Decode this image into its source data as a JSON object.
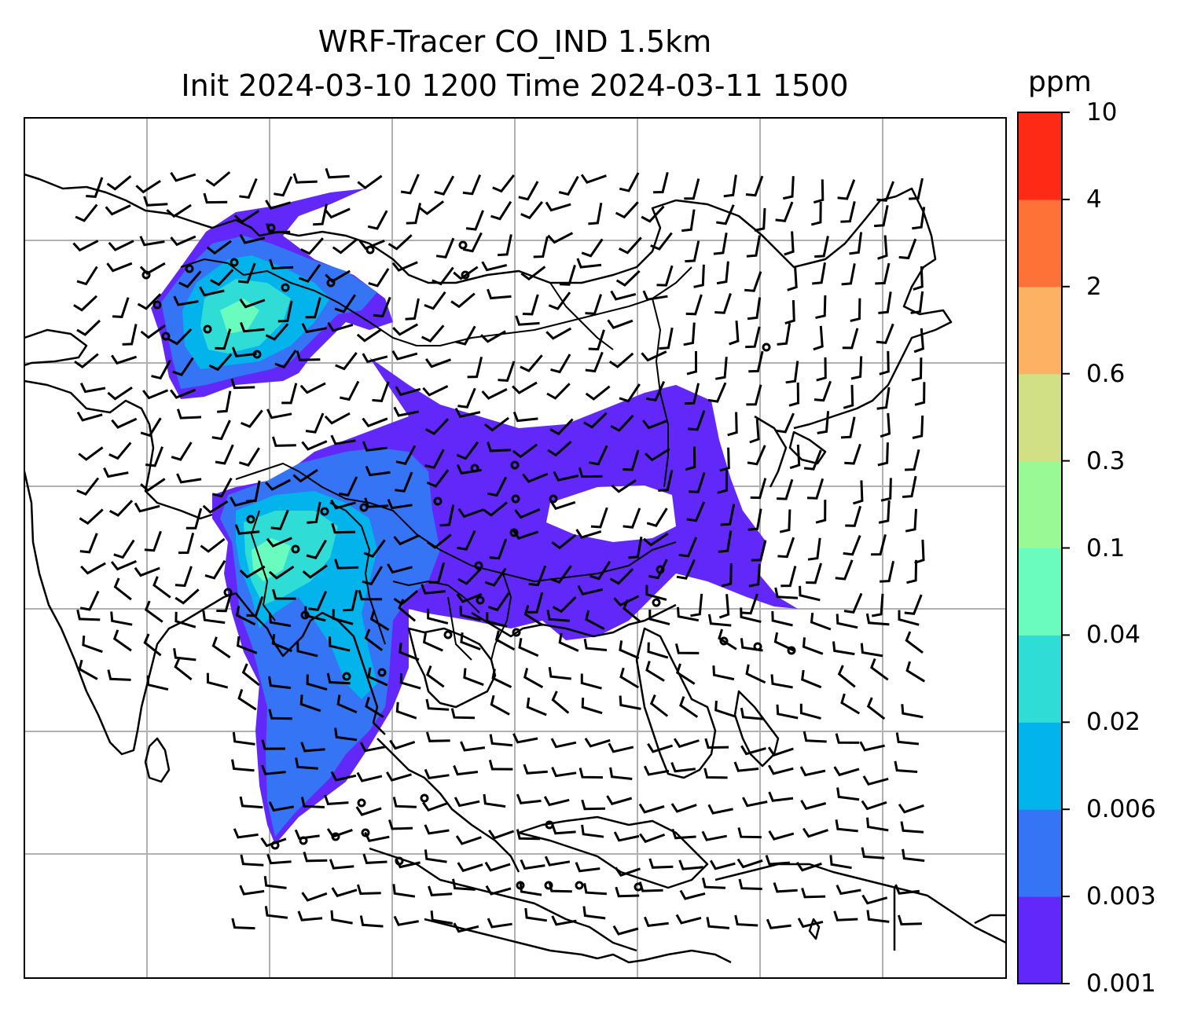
{
  "title": {
    "line1": "WRF-Tracer CO_IND 1.5km",
    "line2": "Init 2024-03-10 1200 Time 2024-03-11 1500"
  },
  "colorbar": {
    "unit": "ppm",
    "ticks": [
      "0.001",
      "0.003",
      "0.006",
      "0.02",
      "0.04",
      "0.1",
      "0.3",
      "0.6",
      "2",
      "4",
      "10"
    ],
    "colors": [
      "#6228fa",
      "#3474f5",
      "#03b3ec",
      "#2fdcd6",
      "#6afcbf",
      "#99f994",
      "#d1e085",
      "#fdb163",
      "#fe7238",
      "#fe2a15"
    ]
  },
  "map": {
    "variable": "CO_IND",
    "overlays": [
      "coastlines",
      "country-borders",
      "lat-lon-gridlines",
      "wind-barbs",
      "station-markers"
    ]
  }
}
